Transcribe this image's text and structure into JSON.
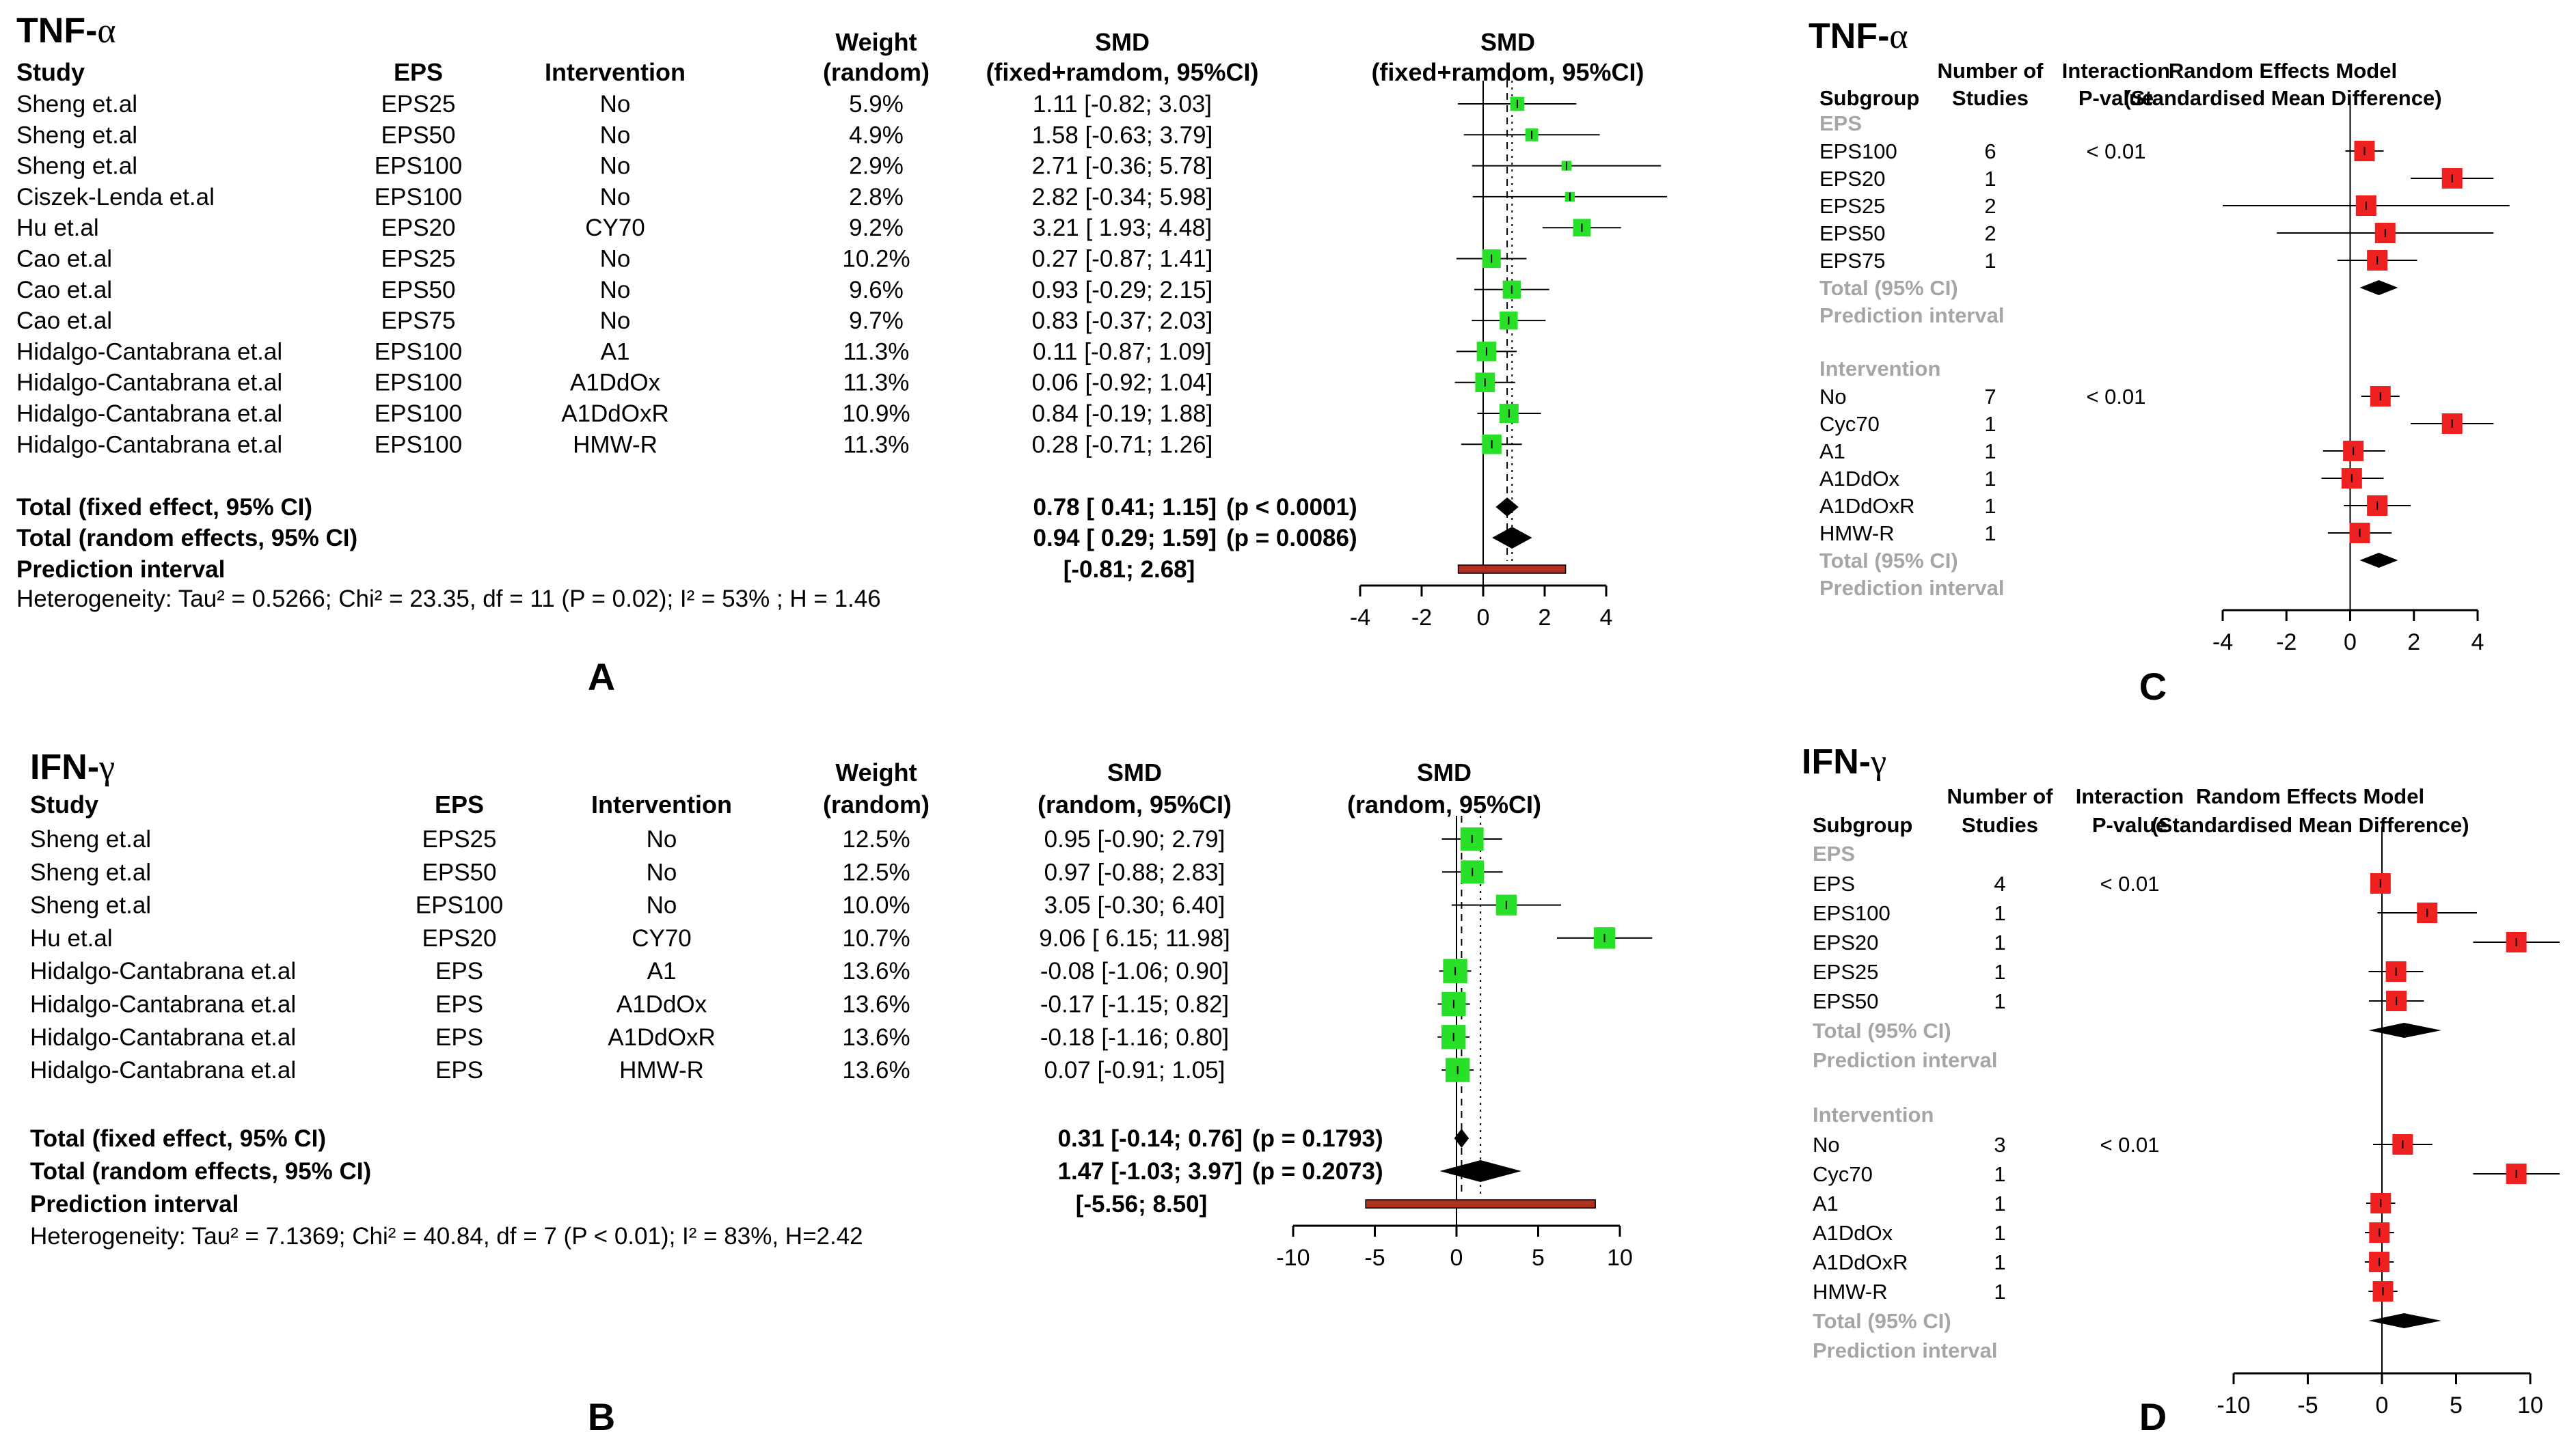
{
  "colors": {
    "study_box": "#27e027",
    "subgroup_box": "#ee2020",
    "diamond": "#000000",
    "prediction_bar": "#b03020",
    "grey_text": "#a6a6a6"
  },
  "panelA": {
    "title": "TNF-",
    "title_greek": "α",
    "label": "A",
    "headers": {
      "study": "Study",
      "eps": "EPS",
      "intervention": "Intervention",
      "weight1": "Weight",
      "weight2": "(random)",
      "smd1": "SMD",
      "smd2": "(fixed+ramdom, 95%CI)",
      "plot1": "SMD",
      "plot2": "(fixed+ramdom, 95%CI)"
    },
    "rows": [
      {
        "study": "Sheng et.al",
        "eps": "EPS25",
        "intervention": "No",
        "weight": "5.9%",
        "ci": "1.11 [-0.82; 3.03]"
      },
      {
        "study": "Sheng et.al",
        "eps": "EPS50",
        "intervention": "No",
        "weight": "4.9%",
        "ci": "1.58 [-0.63; 3.79]"
      },
      {
        "study": "Sheng et.al",
        "eps": "EPS100",
        "intervention": "No",
        "weight": "2.9%",
        "ci": "2.71 [-0.36; 5.78]"
      },
      {
        "study": "Ciszek-Lenda et.al",
        "eps": "EPS100",
        "intervention": "No",
        "weight": "2.8%",
        "ci": "2.82 [-0.34; 5.98]"
      },
      {
        "study": "Hu et.al",
        "eps": "EPS20",
        "intervention": "CY70",
        "weight": "9.2%",
        "ci": "3.21 [ 1.93; 4.48]"
      },
      {
        "study": "Cao et.al",
        "eps": "EPS25",
        "intervention": "No",
        "weight": "10.2%",
        "ci": "0.27 [-0.87; 1.41]"
      },
      {
        "study": "Cao et.al",
        "eps": "EPS50",
        "intervention": "No",
        "weight": "9.6%",
        "ci": "0.93 [-0.29; 2.15]"
      },
      {
        "study": "Cao et.al",
        "eps": "EPS75",
        "intervention": "No",
        "weight": "9.7%",
        "ci": "0.83 [-0.37; 2.03]"
      },
      {
        "study": "Hidalgo-Cantabrana et.al",
        "eps": "EPS100",
        "intervention": "A1",
        "weight": "11.3%",
        "ci": "0.11 [-0.87; 1.09]"
      },
      {
        "study": "Hidalgo-Cantabrana et.al",
        "eps": "EPS100",
        "intervention": "A1DdOx",
        "weight": "11.3%",
        "ci": "0.06 [-0.92; 1.04]"
      },
      {
        "study": "Hidalgo-Cantabrana et.al",
        "eps": "EPS100",
        "intervention": "A1DdOxR",
        "weight": "10.9%",
        "ci": "0.84 [-0.19; 1.88]"
      },
      {
        "study": "Hidalgo-Cantabrana et.al",
        "eps": "EPS100",
        "intervention": "HMW-R",
        "weight": "11.3%",
        "ci": "0.28 [-0.71; 1.26]"
      }
    ],
    "totals": [
      {
        "label": "Total (fixed effect, 95% CI)",
        "ci": "0.78 [ 0.41; 1.15]",
        "p": "(p < 0.0001)"
      },
      {
        "label": "Total (random effects, 95% CI)",
        "ci": "0.94 [ 0.29; 1.59]",
        "p": "(p = 0.0086)"
      },
      {
        "label": "Prediction interval",
        "ci": "[-0.81; 2.68]",
        "p": ""
      }
    ],
    "heterogeneity": "Heterogeneity: Tau² = 0.5266; Chi² = 23.35, df = 11 (P = 0.02); I² = 53% ; H = 1.46"
  },
  "panelB": {
    "title": "IFN-",
    "title_greek": "γ",
    "label": "B",
    "headers": {
      "study": "Study",
      "eps": "EPS",
      "intervention": "Intervention",
      "weight1": "Weight",
      "weight2": "(random)",
      "smd1": "SMD",
      "smd2": "(random, 95%CI)",
      "plot1": "SMD",
      "plot2": "(random, 95%CI)"
    },
    "rows": [
      {
        "study": "Sheng et.al",
        "eps": "EPS25",
        "intervention": "No",
        "weight": "12.5%",
        "ci": "0.95 [-0.90;  2.79]"
      },
      {
        "study": "Sheng et.al",
        "eps": "EPS50",
        "intervention": "No",
        "weight": "12.5%",
        "ci": "0.97 [-0.88;  2.83]"
      },
      {
        "study": "Sheng et.al",
        "eps": "EPS100",
        "intervention": "No",
        "weight": "10.0%",
        "ci": "3.05 [-0.30;  6.40]"
      },
      {
        "study": "Hu et.al",
        "eps": "EPS20",
        "intervention": "CY70",
        "weight": "10.7%",
        "ci": "9.06 [ 6.15; 11.98]"
      },
      {
        "study": "Hidalgo-Cantabrana et.al",
        "eps": "EPS",
        "intervention": "A1",
        "weight": "13.6%",
        "ci": "-0.08 [-1.06;  0.90]"
      },
      {
        "study": "Hidalgo-Cantabrana et.al",
        "eps": "EPS",
        "intervention": "A1DdOx",
        "weight": "13.6%",
        "ci": "-0.17 [-1.15;  0.82]"
      },
      {
        "study": "Hidalgo-Cantabrana et.al",
        "eps": "EPS",
        "intervention": "A1DdOxR",
        "weight": "13.6%",
        "ci": "-0.18 [-1.16;  0.80]"
      },
      {
        "study": "Hidalgo-Cantabrana et.al",
        "eps": "EPS",
        "intervention": "HMW-R",
        "weight": "13.6%",
        "ci": "0.07 [-0.91;  1.05]"
      }
    ],
    "totals": [
      {
        "label": "Total (fixed effect, 95% CI)",
        "ci": "0.31 [-0.14;  0.76]",
        "p": "(p = 0.1793)"
      },
      {
        "label": "Total (random effects, 95% CI)",
        "ci": "1.47 [-1.03;  3.97]",
        "p": "(p = 0.2073)"
      },
      {
        "label": "Prediction interval",
        "ci": "[-5.56;  8.50]",
        "p": ""
      }
    ],
    "heterogeneity": "Heterogeneity: Tau² = 7.1369; Chi² = 40.84, df = 7 (P < 0.01); I² = 83%, H=2.42"
  },
  "panelC": {
    "title": "TNF-",
    "title_greek": "α",
    "label": "C",
    "headers": {
      "subgroup": "Subgroup",
      "num1": "Number of",
      "num2": "Studies",
      "int1": "Interaction",
      "int2": "P-value",
      "rem1": "Random Effects Model",
      "rem2": "(Standardised Mean Difference)"
    },
    "group1": "EPS",
    "group1_rows": [
      {
        "name": "EPS100",
        "n": "6",
        "p": "< 0.01"
      },
      {
        "name": "EPS20",
        "n": "1",
        "p": ""
      },
      {
        "name": "EPS25",
        "n": "2",
        "p": ""
      },
      {
        "name": "EPS50",
        "n": "2",
        "p": ""
      },
      {
        "name": "EPS75",
        "n": "1",
        "p": ""
      }
    ],
    "group2": "Intervention",
    "group2_rows": [
      {
        "name": "No",
        "n": "7",
        "p": "< 0.01"
      },
      {
        "name": "Cyc70",
        "n": "1",
        "p": ""
      },
      {
        "name": "A1",
        "n": "1",
        "p": ""
      },
      {
        "name": "A1DdOx",
        "n": "1",
        "p": ""
      },
      {
        "name": "A1DdOxR",
        "n": "1",
        "p": ""
      },
      {
        "name": "HMW-R",
        "n": "1",
        "p": ""
      }
    ],
    "total_label": "Total (95% CI)",
    "pred_label": "Prediction interval"
  },
  "panelD": {
    "title": "IFN-",
    "title_greek": "γ",
    "label": "D",
    "headers": {
      "subgroup": "Subgroup",
      "num1": "Number of",
      "num2": "Studies",
      "int1": "Interaction",
      "int2": "P-value",
      "rem1": "Random Effects Model",
      "rem2": "(Standardised Mean Difference)"
    },
    "group1": "EPS",
    "group1_rows": [
      {
        "name": "EPS",
        "n": "4",
        "p": "< 0.01"
      },
      {
        "name": "EPS100",
        "n": "1",
        "p": ""
      },
      {
        "name": "EPS20",
        "n": "1",
        "p": ""
      },
      {
        "name": "EPS25",
        "n": "1",
        "p": ""
      },
      {
        "name": "EPS50",
        "n": "1",
        "p": ""
      }
    ],
    "group2": "Intervention",
    "group2_rows": [
      {
        "name": "No",
        "n": "3",
        "p": "< 0.01"
      },
      {
        "name": "Cyc70",
        "n": "1",
        "p": ""
      },
      {
        "name": "A1",
        "n": "1",
        "p": ""
      },
      {
        "name": "A1DdOx",
        "n": "1",
        "p": ""
      },
      {
        "name": "A1DdOxR",
        "n": "1",
        "p": ""
      },
      {
        "name": "HMW-R",
        "n": "1",
        "p": ""
      }
    ],
    "total_label": "Total (95% CI)",
    "pred_label": "Prediction interval"
  },
  "chart_data": [
    {
      "type": "forest",
      "title": "TNF-α",
      "panel": "A",
      "xlim": [
        -4,
        4
      ],
      "ticks": [
        -4,
        -2,
        0,
        2,
        4
      ],
      "studies": [
        {
          "est": 1.11,
          "lo": -0.82,
          "hi": 3.03,
          "weight": 5.9
        },
        {
          "est": 1.58,
          "lo": -0.63,
          "hi": 3.79,
          "weight": 4.9
        },
        {
          "est": 2.71,
          "lo": -0.36,
          "hi": 5.78,
          "weight": 2.9
        },
        {
          "est": 2.82,
          "lo": -0.34,
          "hi": 5.98,
          "weight": 2.8
        },
        {
          "est": 3.21,
          "lo": 1.93,
          "hi": 4.48,
          "weight": 9.2
        },
        {
          "est": 0.27,
          "lo": -0.87,
          "hi": 1.41,
          "weight": 10.2
        },
        {
          "est": 0.93,
          "lo": -0.29,
          "hi": 2.15,
          "weight": 9.6
        },
        {
          "est": 0.83,
          "lo": -0.37,
          "hi": 2.03,
          "weight": 9.7
        },
        {
          "est": 0.11,
          "lo": -0.87,
          "hi": 1.09,
          "weight": 11.3
        },
        {
          "est": 0.06,
          "lo": -0.92,
          "hi": 1.04,
          "weight": 11.3
        },
        {
          "est": 0.84,
          "lo": -0.19,
          "hi": 1.88,
          "weight": 10.9
        },
        {
          "est": 0.28,
          "lo": -0.71,
          "hi": 1.26,
          "weight": 11.3
        }
      ],
      "fixed": {
        "est": 0.78,
        "lo": 0.41,
        "hi": 1.15
      },
      "random": {
        "est": 0.94,
        "lo": 0.29,
        "hi": 1.59
      },
      "prediction": {
        "lo": -0.81,
        "hi": 2.68
      }
    },
    {
      "type": "forest",
      "title": "IFN-γ",
      "panel": "B",
      "xlim": [
        -10,
        10
      ],
      "ticks": [
        -10,
        -5,
        0,
        5,
        10
      ],
      "studies": [
        {
          "est": 0.95,
          "lo": -0.9,
          "hi": 2.79,
          "weight": 12.5
        },
        {
          "est": 0.97,
          "lo": -0.88,
          "hi": 2.83,
          "weight": 12.5
        },
        {
          "est": 3.05,
          "lo": -0.3,
          "hi": 6.4,
          "weight": 10.0
        },
        {
          "est": 9.06,
          "lo": 6.15,
          "hi": 11.98,
          "weight": 10.7
        },
        {
          "est": -0.08,
          "lo": -1.06,
          "hi": 0.9,
          "weight": 13.6
        },
        {
          "est": -0.17,
          "lo": -1.15,
          "hi": 0.82,
          "weight": 13.6
        },
        {
          "est": -0.18,
          "lo": -1.16,
          "hi": 0.8,
          "weight": 13.6
        },
        {
          "est": 0.07,
          "lo": -0.91,
          "hi": 1.05,
          "weight": 13.6
        }
      ],
      "fixed": {
        "est": 0.31,
        "lo": -0.14,
        "hi": 0.76
      },
      "random": {
        "est": 1.47,
        "lo": -1.03,
        "hi": 3.97
      },
      "prediction": {
        "lo": -5.56,
        "hi": 8.5
      }
    },
    {
      "type": "forest-subgroup",
      "title": "TNF-α",
      "panel": "C",
      "xlim": [
        -4,
        4
      ],
      "ticks": [
        -4,
        -2,
        0,
        2,
        4
      ],
      "group1": [
        {
          "est": 0.45,
          "lo": -0.15,
          "hi": 1.05
        },
        {
          "est": 3.2,
          "lo": 1.9,
          "hi": 4.5
        },
        {
          "est": 0.5,
          "lo": -4.0,
          "hi": 5.0
        },
        {
          "est": 1.1,
          "lo": -2.3,
          "hi": 4.5
        },
        {
          "est": 0.85,
          "lo": -0.4,
          "hi": 2.1
        }
      ],
      "group2": [
        {
          "est": 0.95,
          "lo": 0.35,
          "hi": 1.55
        },
        {
          "est": 3.2,
          "lo": 1.9,
          "hi": 4.5
        },
        {
          "est": 0.1,
          "lo": -0.85,
          "hi": 1.1
        },
        {
          "est": 0.05,
          "lo": -0.9,
          "hi": 1.05
        },
        {
          "est": 0.85,
          "lo": -0.2,
          "hi": 1.9
        },
        {
          "est": 0.3,
          "lo": -0.7,
          "hi": 1.3
        }
      ],
      "total1": {
        "est": 0.9,
        "lo": 0.3,
        "hi": 1.5
      },
      "total2": {
        "est": 0.9,
        "lo": 0.3,
        "hi": 1.5
      }
    },
    {
      "type": "forest-subgroup",
      "title": "IFN-γ",
      "panel": "D",
      "xlim": [
        -10,
        10
      ],
      "ticks": [
        -10,
        -5,
        0,
        5,
        10
      ],
      "group1": [
        {
          "est": -0.1,
          "lo": -0.6,
          "hi": 0.4
        },
        {
          "est": 3.05,
          "lo": -0.3,
          "hi": 6.4
        },
        {
          "est": 9.06,
          "lo": 6.15,
          "hi": 11.98
        },
        {
          "est": 0.95,
          "lo": -0.9,
          "hi": 2.79
        },
        {
          "est": 0.97,
          "lo": -0.88,
          "hi": 2.83
        }
      ],
      "group2": [
        {
          "est": 1.4,
          "lo": -0.6,
          "hi": 3.4
        },
        {
          "est": 9.06,
          "lo": 6.15,
          "hi": 11.98
        },
        {
          "est": -0.08,
          "lo": -1.06,
          "hi": 0.9
        },
        {
          "est": -0.17,
          "lo": -1.15,
          "hi": 0.82
        },
        {
          "est": -0.18,
          "lo": -1.16,
          "hi": 0.8
        },
        {
          "est": 0.07,
          "lo": -0.91,
          "hi": 1.05
        }
      ],
      "total1": {
        "est": 1.5,
        "lo": -0.9,
        "hi": 4.0
      },
      "total2": {
        "est": 1.5,
        "lo": -0.9,
        "hi": 4.0
      }
    }
  ]
}
